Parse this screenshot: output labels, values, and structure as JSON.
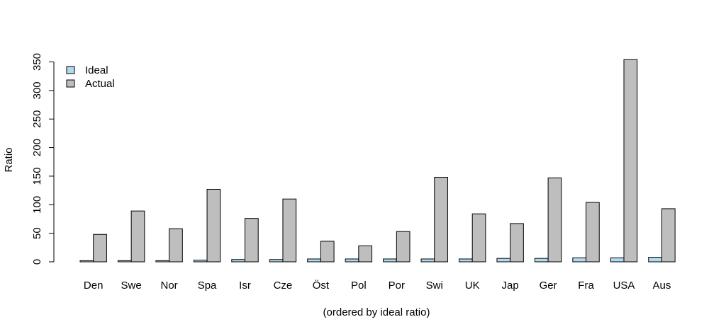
{
  "chart_data": {
    "type": "bar",
    "title": "",
    "xlabel": "(ordered by ideal ratio)",
    "ylabel": "Ratio",
    "ylim": [
      0,
      350
    ],
    "yticks": [
      "0",
      "50",
      "100",
      "150",
      "200",
      "250",
      "300",
      "350"
    ],
    "grid": false,
    "legend_position": "top-left",
    "categories": [
      "Den",
      "Swe",
      "Nor",
      "Spa",
      "Isr",
      "Cze",
      "Öst",
      "Pol",
      "Por",
      "Swi",
      "UK",
      "Jap",
      "Ger",
      "Fra",
      "USA",
      "Aus"
    ],
    "series": [
      {
        "name": "Ideal",
        "color": "#b3d9ee",
        "values": [
          2,
          2,
          2,
          3,
          4,
          4,
          5,
          5,
          5,
          5,
          5,
          6,
          6,
          7,
          7,
          8
        ]
      },
      {
        "name": "Actual",
        "color": "#bebebe",
        "values": [
          48,
          89,
          58,
          127,
          76,
          110,
          36,
          28,
          53,
          148,
          84,
          67,
          147,
          104,
          354,
          93
        ]
      }
    ]
  }
}
